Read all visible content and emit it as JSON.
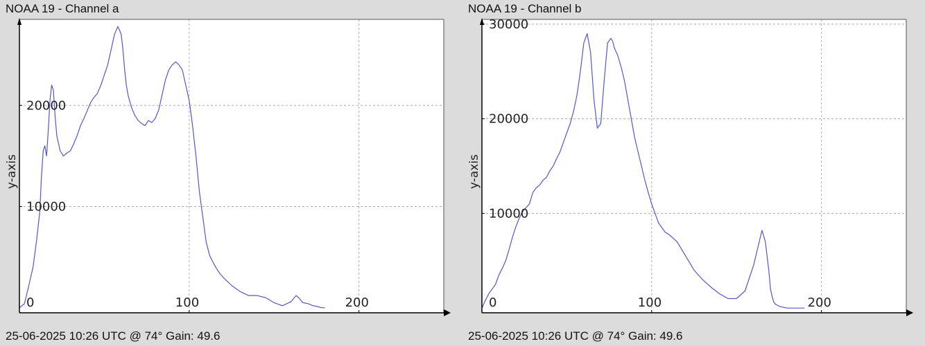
{
  "chart_data": [
    {
      "type": "line",
      "title": "NOAA 19 - Channel a",
      "footer": "25-06-2025 10:26 UTC @ 74° Gain: 49.6",
      "xlabel": "",
      "ylabel": "y-axis",
      "xlim": [
        0,
        250
      ],
      "ylim": [
        -500,
        28500
      ],
      "xticks": [
        0,
        100,
        200
      ],
      "yticks": [
        10000,
        20000
      ],
      "grid": true,
      "series_color": "#5555cc",
      "series": [
        {
          "x": [
            0,
            3,
            5,
            8,
            10,
            12,
            13,
            14,
            15,
            16,
            17,
            18,
            19,
            20,
            21,
            22,
            24,
            26,
            28,
            30,
            32,
            34,
            36,
            38,
            40,
            42,
            44,
            46,
            48,
            50,
            52,
            54,
            56,
            58,
            60,
            61,
            62,
            63,
            64,
            66,
            68,
            70,
            72,
            74,
            76,
            78,
            80,
            82,
            84,
            86,
            88,
            90,
            92,
            94,
            96,
            98,
            100,
            102,
            104,
            106,
            108,
            110,
            112,
            114,
            116,
            118,
            120,
            125,
            130,
            135,
            140,
            145,
            150,
            155,
            160,
            163,
            165,
            167,
            170,
            173,
            175,
            178,
            180
          ],
          "values": [
            0,
            400,
            1800,
            4000,
            6500,
            9500,
            13000,
            15500,
            16000,
            15000,
            17500,
            20500,
            22000,
            21500,
            19000,
            17000,
            15500,
            15000,
            15300,
            15500,
            16200,
            17000,
            18000,
            18700,
            19500,
            20300,
            20800,
            21200,
            22000,
            23000,
            24000,
            25500,
            27000,
            27800,
            27000,
            25500,
            23500,
            22000,
            21000,
            19800,
            19000,
            18500,
            18200,
            18000,
            18500,
            18300,
            18700,
            19500,
            21000,
            22500,
            23500,
            24000,
            24300,
            24000,
            23500,
            22000,
            20500,
            18000,
            15000,
            11500,
            9000,
            6500,
            5200,
            4500,
            3900,
            3400,
            3000,
            2200,
            1600,
            1200,
            1200,
            1000,
            500,
            200,
            600,
            1200,
            900,
            500,
            400,
            200,
            150,
            0,
            0
          ]
        }
      ]
    },
    {
      "type": "line",
      "title": "NOAA 19 - Channel b",
      "footer": "25-06-2025 10:26 UTC @ 74° Gain: 49.6",
      "xlabel": "",
      "ylabel": "y-axis",
      "xlim": [
        0,
        250
      ],
      "ylim": [
        -500,
        30500
      ],
      "xticks": [
        0,
        100,
        200
      ],
      "yticks": [
        10000,
        20000,
        30000
      ],
      "grid": true,
      "series_color": "#5555cc",
      "series": [
        {
          "x": [
            0,
            2,
            4,
            6,
            8,
            10,
            12,
            14,
            16,
            18,
            20,
            22,
            24,
            26,
            28,
            30,
            32,
            34,
            36,
            38,
            40,
            42,
            44,
            46,
            48,
            50,
            52,
            54,
            56,
            58,
            60,
            62,
            64,
            66,
            68,
            70,
            72,
            74,
            76,
            77,
            78,
            80,
            82,
            84,
            86,
            88,
            90,
            92,
            94,
            96,
            98,
            100,
            102,
            104,
            106,
            108,
            110,
            115,
            120,
            125,
            130,
            135,
            140,
            145,
            150,
            155,
            160,
            165,
            167,
            169,
            170,
            171,
            172,
            173,
            175,
            177,
            180,
            183,
            186,
            190
          ],
          "values": [
            0,
            800,
            1500,
            2000,
            2500,
            3500,
            4200,
            5000,
            6200,
            7500,
            8600,
            9500,
            10200,
            10600,
            11000,
            12200,
            12700,
            13000,
            13500,
            13800,
            14500,
            15000,
            15800,
            16500,
            17500,
            18500,
            19500,
            20800,
            22500,
            25000,
            28000,
            29000,
            27000,
            22000,
            19000,
            19500,
            24000,
            28000,
            28500,
            28200,
            27500,
            26700,
            25500,
            24000,
            22000,
            20000,
            18000,
            16500,
            15000,
            13500,
            12200,
            11000,
            10000,
            9000,
            8500,
            8000,
            7800,
            7000,
            5500,
            4000,
            3000,
            2200,
            1500,
            1000,
            1000,
            1800,
            4500,
            8200,
            7000,
            4000,
            2000,
            1200,
            600,
            400,
            200,
            100,
            0,
            0,
            0,
            0
          ]
        }
      ]
    }
  ]
}
